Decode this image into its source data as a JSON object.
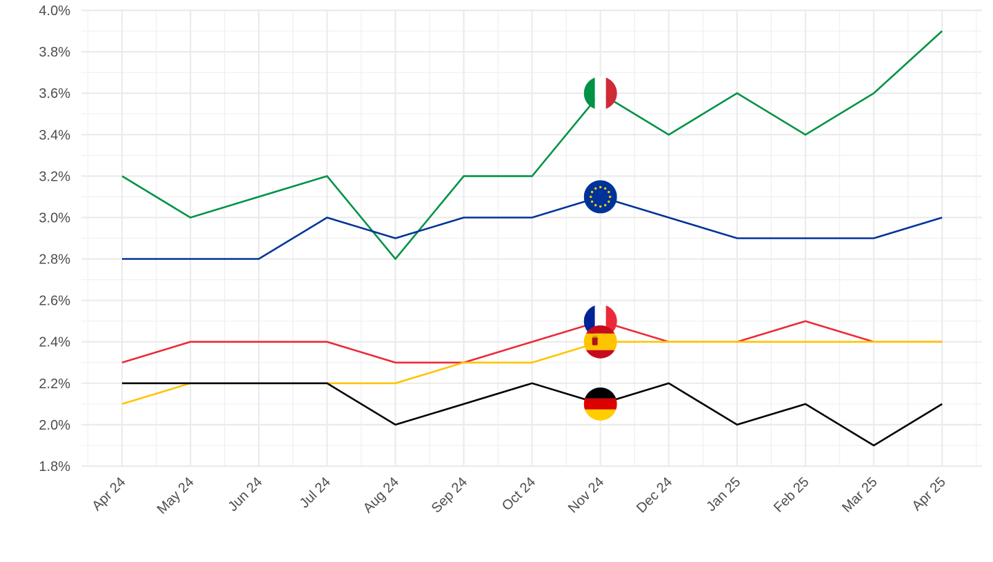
{
  "chart_data": {
    "type": "line",
    "categories": [
      "Apr 24",
      "May 24",
      "Jun 24",
      "Jul 24",
      "Aug 24",
      "Sep 24",
      "Oct 24",
      "Nov 24",
      "Dec 24",
      "Jan 25",
      "Feb 25",
      "Mar 25",
      "Apr 25"
    ],
    "y_ticks": [
      "1.8%",
      "2.0%",
      "2.2%",
      "2.4%",
      "2.6%",
      "2.8%",
      "3.0%",
      "3.2%",
      "3.4%",
      "3.6%",
      "3.8%",
      "4.0%"
    ],
    "ylim": [
      1.8,
      4.0
    ],
    "y_unit": "%",
    "grid": true,
    "legend": "flag markers at Nov 24",
    "flag_marker_category": "Nov 24",
    "series": [
      {
        "key": "italy",
        "flag": "italy-flag-icon",
        "color": "#009246",
        "values": [
          3.2,
          3.0,
          3.1,
          3.2,
          2.8,
          3.2,
          3.2,
          3.6,
          3.4,
          3.6,
          3.4,
          3.6,
          3.9
        ]
      },
      {
        "key": "euro-area",
        "flag": "eu-flag-icon",
        "color": "#003399",
        "values": [
          2.8,
          2.8,
          2.8,
          3.0,
          2.9,
          3.0,
          3.0,
          3.1,
          3.0,
          2.9,
          2.9,
          2.9,
          3.0
        ]
      },
      {
        "key": "france",
        "flag": "france-flag-icon",
        "color": "#ED2939",
        "values": [
          2.3,
          2.4,
          2.4,
          2.4,
          2.3,
          2.3,
          2.4,
          2.5,
          2.4,
          2.4,
          2.5,
          2.4,
          2.4
        ]
      },
      {
        "key": "spain",
        "flag": "spain-flag-icon",
        "color": "#FFC400",
        "values": [
          2.1,
          2.2,
          2.2,
          2.2,
          2.2,
          2.3,
          2.3,
          2.4,
          2.4,
          2.4,
          2.4,
          2.4,
          2.4
        ]
      },
      {
        "key": "germany",
        "flag": "germany-flag-icon",
        "color": "#000000",
        "values": [
          2.2,
          2.2,
          2.2,
          2.2,
          2.0,
          2.1,
          2.2,
          2.1,
          2.2,
          2.0,
          2.1,
          1.9,
          2.1
        ]
      }
    ]
  }
}
